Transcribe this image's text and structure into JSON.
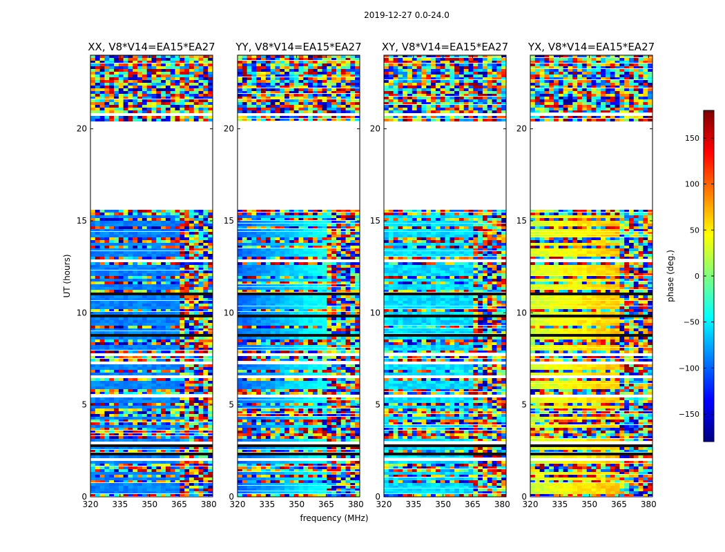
{
  "figure": {
    "suptitle": "2019-12-27 0.0-24.0",
    "xlabel": "frequency (MHz)",
    "ylabel": "UT (hours)"
  },
  "chart_data": {
    "type": "heatmap",
    "x": {
      "label": "frequency (MHz)",
      "range": [
        320,
        382
      ],
      "ticks": [
        320,
        335,
        350,
        365,
        380
      ]
    },
    "y": {
      "label": "UT (hours)",
      "range": [
        0,
        24
      ],
      "ticks": [
        0,
        5,
        10,
        15,
        20
      ]
    },
    "panels": [
      {
        "title": "XX, V8*V14=EA15*EA27",
        "phase_style": "blue"
      },
      {
        "title": "YY, V8*V14=EA15*EA27",
        "phase_style": "gradient"
      },
      {
        "title": "XY, V8*V14=EA15*EA27",
        "phase_style": "lightblue"
      },
      {
        "title": "YX, V8*V14=EA15*EA27",
        "phase_style": "warm"
      }
    ],
    "data_gaps_hours": [
      [
        15.7,
        20.5
      ]
    ],
    "colorbar": {
      "label": "phase (deg.)",
      "range": [
        -180,
        180
      ],
      "ticks": [
        150,
        100,
        50,
        0,
        -50,
        -100,
        -150
      ],
      "tick_labels": [
        "150",
        "100",
        "50",
        "0",
        "−50",
        "−100",
        "−150"
      ],
      "colormap": "jet",
      "colors": [
        "#00007f",
        "#0000ff",
        "#007fff",
        "#00ffff",
        "#7fff7f",
        "#ffff00",
        "#ff7f00",
        "#ff0000",
        "#7f0000"
      ]
    }
  }
}
